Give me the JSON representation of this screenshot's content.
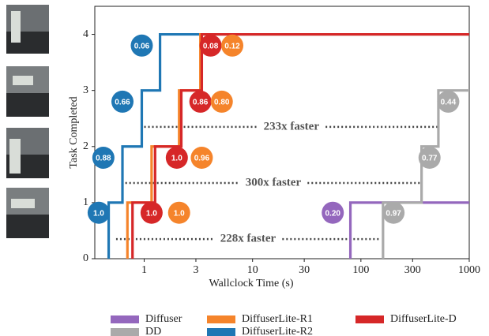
{
  "chart_data": {
    "type": "step",
    "x_label": "Wallclock Time (s)",
    "y_label": "Task Completed",
    "xscale": "log",
    "xlim": [
      0.35,
      1000
    ],
    "xticks": [
      1,
      3,
      10,
      30,
      100,
      300,
      1000
    ],
    "ylim": [
      0,
      4.5
    ],
    "yticks": [
      0,
      1,
      2,
      3,
      4
    ],
    "series": [
      {
        "name": "Diffuser",
        "color": "#9467bd",
        "x": [
          80
        ],
        "values": [
          1
        ]
      },
      {
        "name": "DiffuserLite-R1",
        "color": "#f5842b",
        "x": [
          0.7,
          1.17,
          2.1,
          3.3
        ],
        "values": [
          1,
          2,
          3,
          4
        ]
      },
      {
        "name": "DiffuserLite-D",
        "color": "#d62728",
        "x": [
          0.78,
          1.26,
          2.2,
          3.4
        ],
        "values": [
          1,
          2,
          3,
          4
        ]
      },
      {
        "name": "DD",
        "color": "#aaaaaa",
        "x": [
          160,
          363,
          519,
          771
        ],
        "values": [
          1,
          2,
          3,
          3
        ]
      },
      {
        "name": "DiffuserLite-R2",
        "color": "#1f77b4",
        "x": [
          0.47,
          0.63,
          0.95,
          1.4
        ],
        "values": [
          1,
          2,
          3,
          4
        ]
      }
    ],
    "annotations": [
      {
        "text": "1.0",
        "color": "#1f77b4",
        "x": 0.38,
        "y": 0.82
      },
      {
        "text": "0.88",
        "color": "#1f77b4",
        "x": 0.42,
        "y": 1.8
      },
      {
        "text": "0.66",
        "color": "#1f77b4",
        "x": 0.63,
        "y": 2.8
      },
      {
        "text": "0.06",
        "color": "#1f77b4",
        "x": 0.95,
        "y": 3.8
      },
      {
        "text": "1.0",
        "color": "#d62728",
        "x": 1.17,
        "y": 0.82
      },
      {
        "text": "1.0",
        "color": "#f5842b",
        "x": 2.1,
        "y": 0.82
      },
      {
        "text": "1.0",
        "color": "#d62728",
        "x": 2.0,
        "y": 1.8
      },
      {
        "text": "0.96",
        "color": "#f5842b",
        "x": 3.4,
        "y": 1.8
      },
      {
        "text": "0.86",
        "color": "#d62728",
        "x": 3.3,
        "y": 2.8
      },
      {
        "text": "0.80",
        "color": "#f5842b",
        "x": 5.2,
        "y": 2.8
      },
      {
        "text": "0.08",
        "color": "#d62728",
        "x": 4.1,
        "y": 3.8
      },
      {
        "text": "0.12",
        "color": "#f5842b",
        "x": 6.5,
        "y": 3.8
      },
      {
        "text": "0.20",
        "color": "#9467bd",
        "x": 55,
        "y": 0.82
      },
      {
        "text": "0.97",
        "color": "#aaaaaa",
        "x": 200,
        "y": 0.82
      },
      {
        "text": "0.77",
        "color": "#aaaaaa",
        "x": 430,
        "y": 1.8
      },
      {
        "text": "0.44",
        "color": "#aaaaaa",
        "x": 640,
        "y": 2.8
      }
    ],
    "speedups": [
      {
        "text": "228x faster",
        "y": 0.35,
        "from": 0.55,
        "to": 150
      },
      {
        "text": "300x faster",
        "y": 1.35,
        "from": 0.67,
        "to": 360
      },
      {
        "text": "233x faster",
        "y": 2.35,
        "from": 1.0,
        "to": 520
      }
    ]
  }
}
